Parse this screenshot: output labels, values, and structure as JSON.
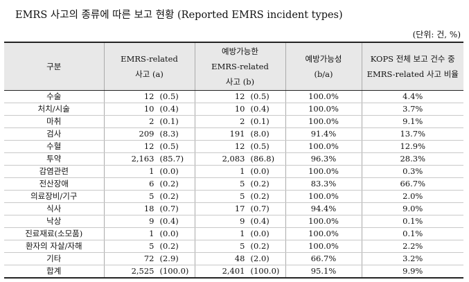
{
  "title": "EMRS 사고의 종류에 따른 보고 현황 (Reported EMRS incident types)",
  "unit": "(단위: 건, %)",
  "headers": {
    "category": "구분",
    "emrs_line1": "EMRS-related",
    "emrs_line2": "사고 (a)",
    "prev_line1": "예방가능한",
    "prev_line2": "EMRS-related",
    "prev_line3": "사고 (b)",
    "rate_line1": "예방가능성",
    "rate_line2": "(b/a)",
    "ratio_line1": "KOPS 전체 보고 건수 중",
    "ratio_line2": "EMRS-related 사고 비율"
  },
  "rows": [
    {
      "category": "수술",
      "a_n": "12",
      "a_p": "(0.5)",
      "b_n": "12",
      "b_p": "(0.5)",
      "rate": "100.0%",
      "ratio": "4.4%"
    },
    {
      "category": "처치/시술",
      "a_n": "10",
      "a_p": "(0.4)",
      "b_n": "10",
      "b_p": "(0.4)",
      "rate": "100.0%",
      "ratio": "3.7%"
    },
    {
      "category": "마취",
      "a_n": "2",
      "a_p": "(0.1)",
      "b_n": "2",
      "b_p": "(0.1)",
      "rate": "100.0%",
      "ratio": "9.1%"
    },
    {
      "category": "검사",
      "a_n": "209",
      "a_p": "(8.3)",
      "b_n": "191",
      "b_p": "(8.0)",
      "rate": "91.4%",
      "ratio": "13.7%"
    },
    {
      "category": "수혈",
      "a_n": "12",
      "a_p": "(0.5)",
      "b_n": "12",
      "b_p": "(0.5)",
      "rate": "100.0%",
      "ratio": "12.9%"
    },
    {
      "category": "투약",
      "a_n": "2,163",
      "a_p": "(85.7)",
      "b_n": "2,083",
      "b_p": "(86.8)",
      "rate": "96.3%",
      "ratio": "28.3%"
    },
    {
      "category": "감염관련",
      "a_n": "1",
      "a_p": "(0.0)",
      "b_n": "1",
      "b_p": "(0.0)",
      "rate": "100.0%",
      "ratio": "0.3%"
    },
    {
      "category": "전산장애",
      "a_n": "6",
      "a_p": "(0.2)",
      "b_n": "5",
      "b_p": "(0.2)",
      "rate": "83.3%",
      "ratio": "66.7%"
    },
    {
      "category": "의료장비/기구",
      "a_n": "5",
      "a_p": "(0.2)",
      "b_n": "5",
      "b_p": "(0.2)",
      "rate": "100.0%",
      "ratio": "2.0%"
    },
    {
      "category": "식사",
      "a_n": "18",
      "a_p": "(0.7)",
      "b_n": "17",
      "b_p": "(0.7)",
      "rate": "94.4%",
      "ratio": "9.0%"
    },
    {
      "category": "낙상",
      "a_n": "9",
      "a_p": "(0.4)",
      "b_n": "9",
      "b_p": "(0.4)",
      "rate": "100.0%",
      "ratio": "0.1%"
    },
    {
      "category": "진료재료(소모품)",
      "a_n": "1",
      "a_p": "(0.0)",
      "b_n": "1",
      "b_p": "(0.0)",
      "rate": "100.0%",
      "ratio": "0.1%"
    },
    {
      "category": "환자의 자살/자해",
      "a_n": "5",
      "a_p": "(0.2)",
      "b_n": "5",
      "b_p": "(0.2)",
      "rate": "100.0%",
      "ratio": "2.2%"
    },
    {
      "category": "기타",
      "a_n": "72",
      "a_p": "(2.9)",
      "b_n": "48",
      "b_p": "(2.0)",
      "rate": "66.7%",
      "ratio": "3.2%"
    },
    {
      "category": "합계",
      "a_n": "2,525",
      "a_p": "(100.0)",
      "b_n": "2,401",
      "b_p": "(100.0)",
      "rate": "95.1%",
      "ratio": "9.9%"
    }
  ]
}
